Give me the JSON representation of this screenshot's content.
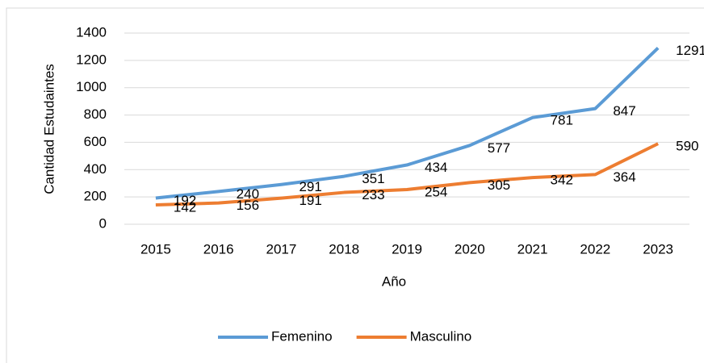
{
  "chart_data": {
    "type": "line",
    "xlabel": "Año",
    "ylabel": "Cantidad Estudaintes",
    "categories": [
      "2015",
      "2016",
      "2017",
      "2018",
      "2019",
      "2020",
      "2021",
      "2022",
      "2023"
    ],
    "series": [
      {
        "name": "Femenino",
        "color": "#5b9bd5",
        "values": [
          192,
          240,
          291,
          351,
          434,
          577,
          781,
          847,
          1291
        ]
      },
      {
        "name": "Masculino",
        "color": "#ed7d31",
        "values": [
          142,
          156,
          191,
          233,
          254,
          305,
          342,
          364,
          590
        ]
      }
    ],
    "ylim": [
      0,
      1400
    ],
    "yticks": [
      0,
      200,
      400,
      600,
      800,
      1000,
      1200,
      1400
    ],
    "grid": true,
    "legend": "bottom",
    "data_labels": true
  }
}
